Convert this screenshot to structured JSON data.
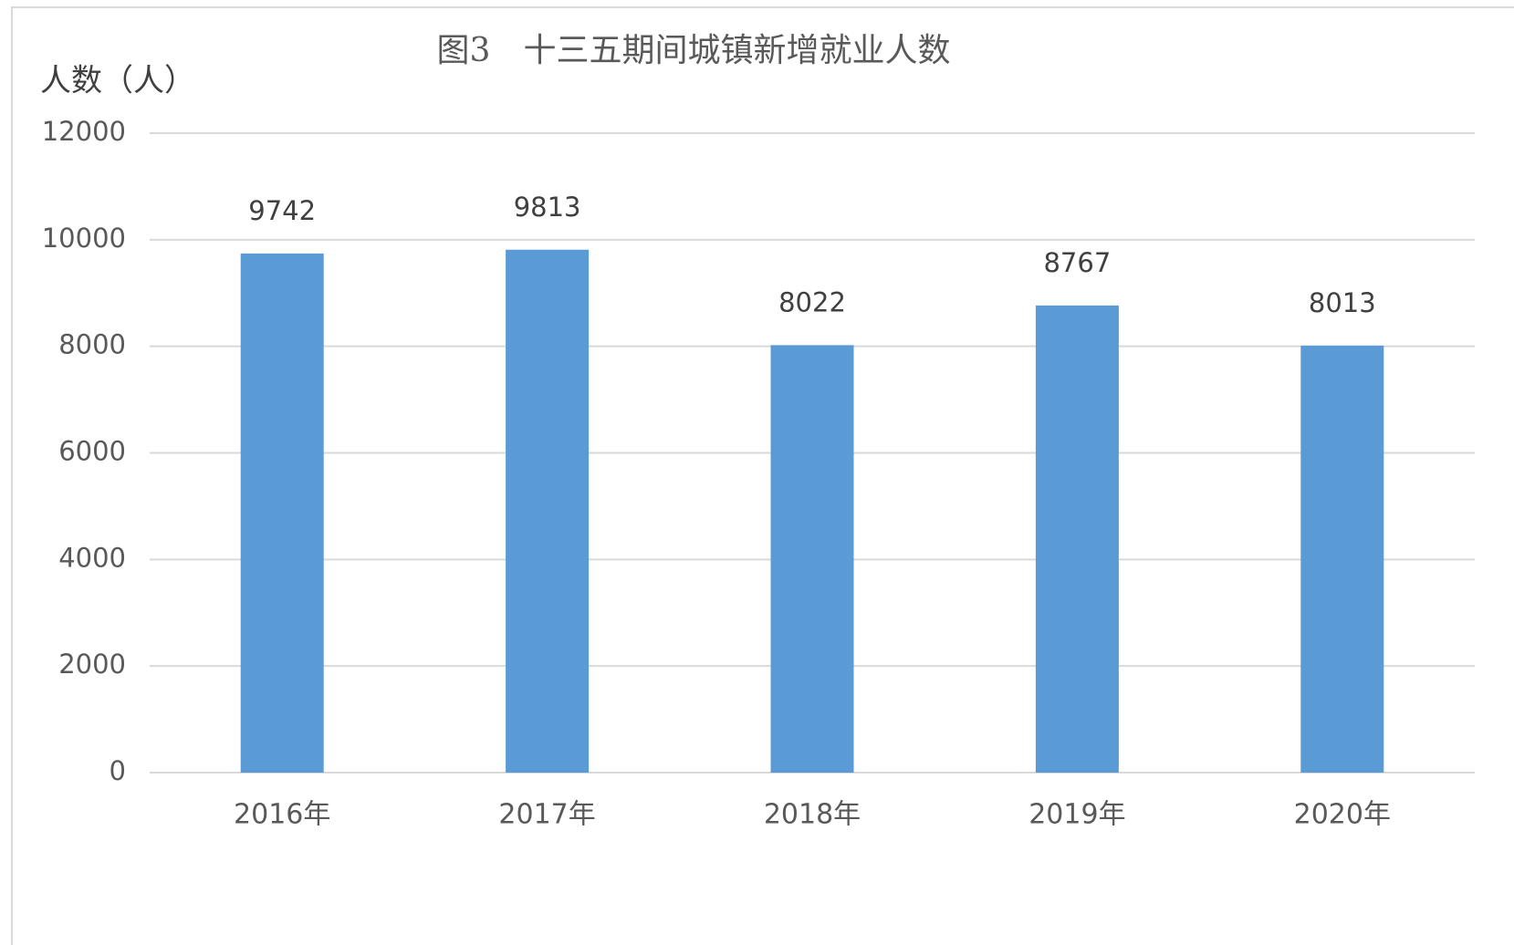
{
  "chart_data": {
    "type": "bar",
    "title": "图3　十三五期间城镇新增就业人数",
    "y_label": "人数（人）",
    "categories": [
      "2016年",
      "2017年",
      "2018年",
      "2019年",
      "2020年"
    ],
    "values": [
      9742,
      9813,
      8022,
      8767,
      8013
    ],
    "color": "#5b9bd5",
    "ylim": [
      0,
      12000
    ],
    "yticks": [
      0,
      2000,
      4000,
      6000,
      8000,
      10000,
      12000
    ],
    "grid": true
  }
}
